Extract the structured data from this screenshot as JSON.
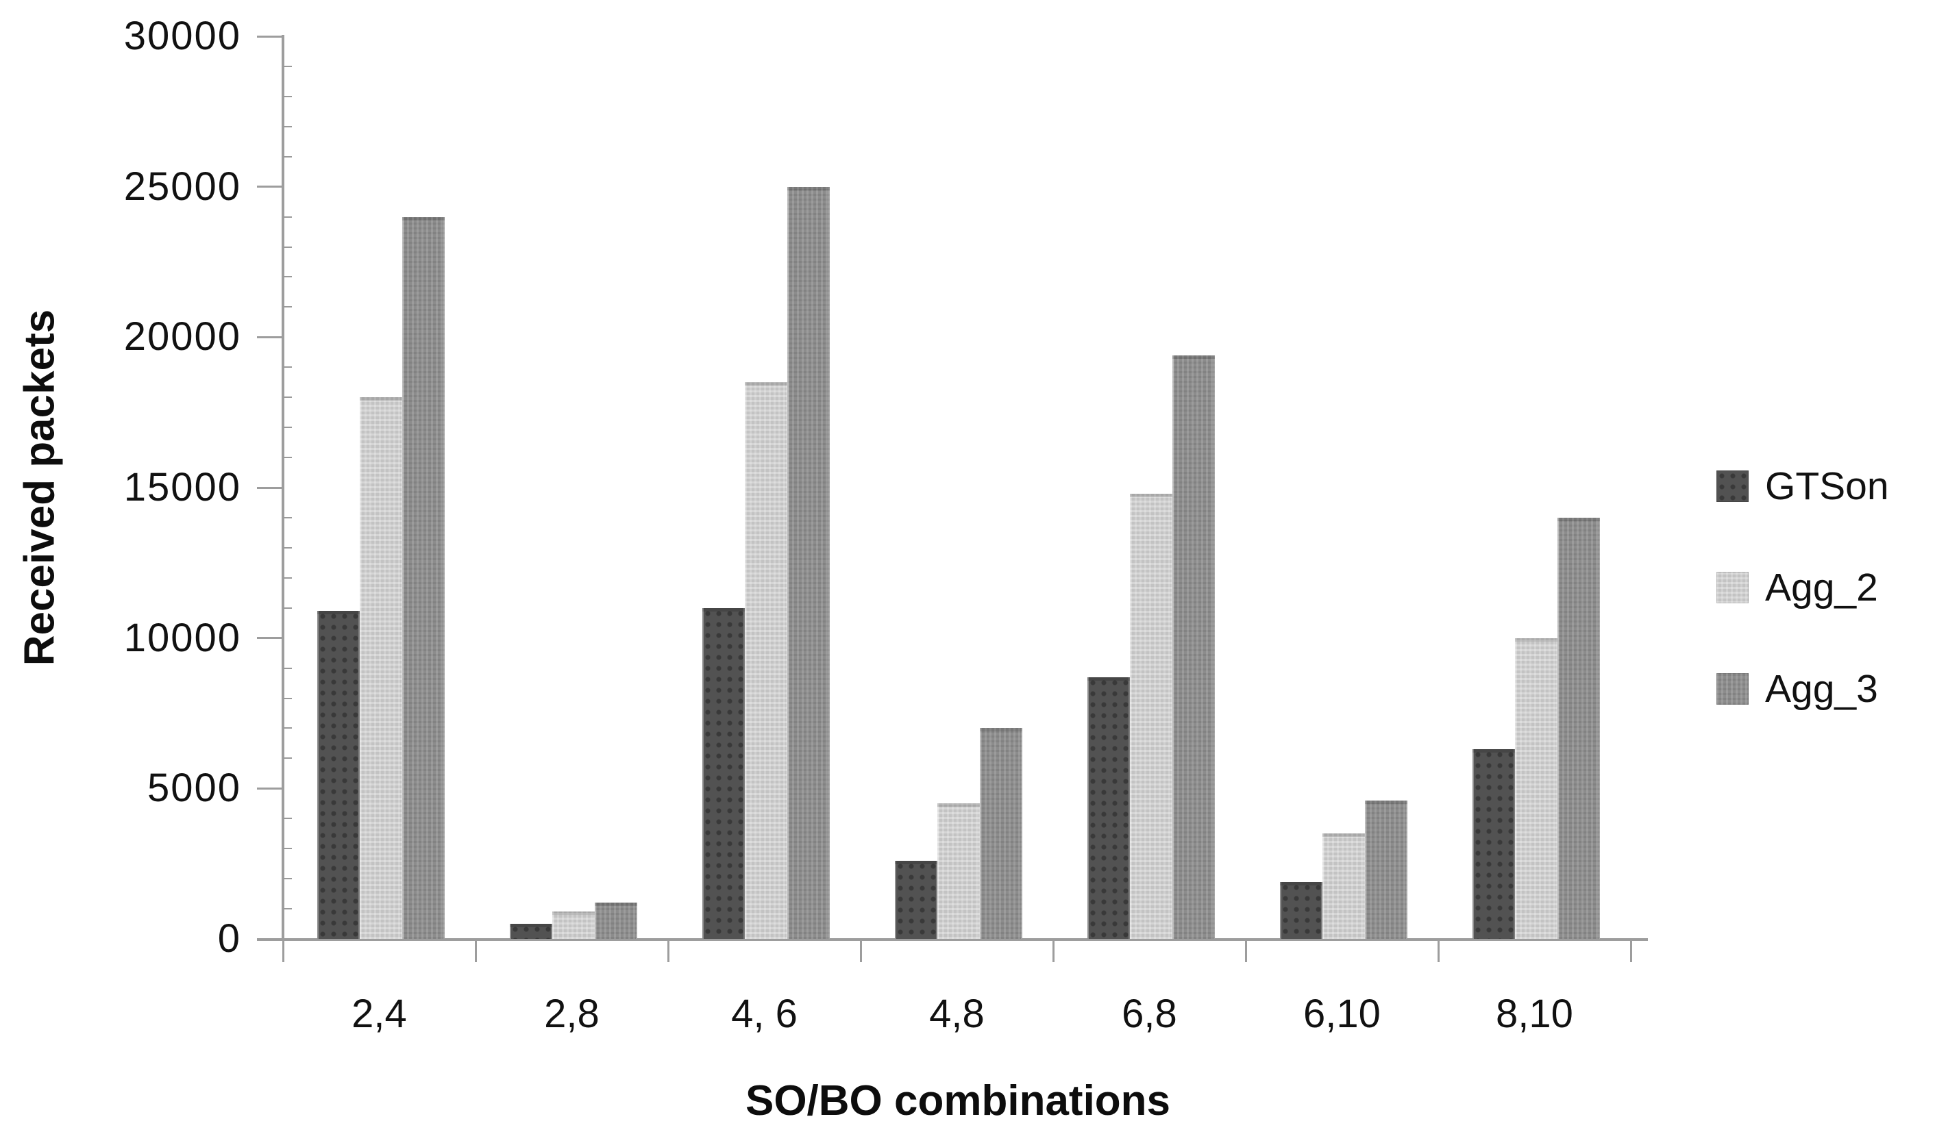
{
  "chart_data": {
    "type": "bar",
    "title": "",
    "xlabel": "SO/BO combinations",
    "ylabel": "Received packets",
    "categories": [
      "2,4",
      "2,8",
      "4, 6",
      "4,8",
      "6,8",
      "6,10",
      "8,10"
    ],
    "series": [
      {
        "name": "GTSon",
        "color": "#525252",
        "values": [
          10900,
          500,
          11000,
          2600,
          8700,
          1900,
          6300
        ]
      },
      {
        "name": "Agg_2",
        "color": "#c3c3c3",
        "values": [
          18000,
          900,
          18500,
          4500,
          14800,
          3500,
          10000
        ]
      },
      {
        "name": "Agg_3",
        "color": "#8c8c8c",
        "values": [
          24000,
          1200,
          25000,
          7000,
          19400,
          4600,
          14000
        ]
      }
    ],
    "ylim": [
      0,
      30000
    ],
    "yticks": [
      0,
      5000,
      10000,
      15000,
      20000,
      25000,
      30000
    ],
    "y_minor_step": 1000,
    "grid": false,
    "legend_position": "right",
    "axis_color": "#9d9d9d",
    "text_color": "#111111"
  }
}
